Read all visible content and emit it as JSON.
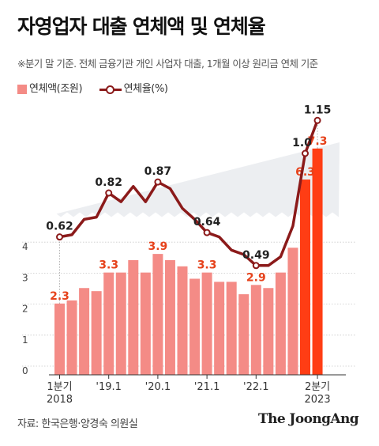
{
  "title": "자영업자 대출 연체액 및 연체율",
  "subtitle": "※분기 말 기준. 전체 금융기관 개인 사업자 대출, 1개월 이상 원리금 연체 기준",
  "legend": {
    "bar_label": "연체액(조원)",
    "line_label": "연체율(%)"
  },
  "source": "자료: 한국은행·양경숙 의원실",
  "brand": "The JoongAng",
  "colors": {
    "bar": "#f48b86",
    "bar_highlight": "#ff3d14",
    "line": "#8b1a1a",
    "highlight_text": "#e6421b",
    "label_text": "#a82a1a",
    "band": "#eceef1"
  },
  "chart_data": {
    "type": "bar",
    "categories": [
      "2018Q1",
      "2018Q2",
      "2018Q3",
      "2018Q4",
      "2019Q1",
      "2019Q2",
      "2019Q3",
      "2019Q4",
      "2020Q1",
      "2020Q2",
      "2020Q3",
      "2020Q4",
      "2021Q1",
      "2021Q2",
      "2021Q3",
      "2021Q4",
      "2022Q1",
      "2022Q2",
      "2022Q3",
      "2022Q4",
      "2023Q1",
      "2023Q2"
    ],
    "series": [
      {
        "name": "연체액(조원)",
        "type": "bar",
        "values": [
          2.3,
          2.4,
          2.8,
          2.7,
          3.3,
          3.3,
          3.7,
          3.3,
          3.9,
          3.7,
          3.5,
          3.1,
          3.3,
          3.0,
          3.0,
          2.6,
          2.9,
          2.8,
          3.3,
          4.1,
          6.3,
          7.3
        ]
      },
      {
        "name": "연체율(%)",
        "type": "line",
        "values": [
          0.62,
          0.63,
          0.7,
          0.71,
          0.82,
          0.78,
          0.85,
          0.78,
          0.87,
          0.84,
          0.75,
          0.7,
          0.64,
          0.62,
          0.56,
          0.54,
          0.49,
          0.49,
          0.53,
          0.67,
          1.0,
          1.15
        ]
      }
    ],
    "bar_labels": [
      {
        "index": 0,
        "text": "2.3"
      },
      {
        "index": 4,
        "text": "3.3"
      },
      {
        "index": 8,
        "text": "3.9"
      },
      {
        "index": 12,
        "text": "3.3"
      },
      {
        "index": 16,
        "text": "2.9"
      },
      {
        "index": 20,
        "text": "6.3"
      },
      {
        "index": 21,
        "text": "7.3"
      }
    ],
    "line_labels": [
      {
        "index": 0,
        "text": "0.62"
      },
      {
        "index": 4,
        "text": "0.82"
      },
      {
        "index": 8,
        "text": "0.87"
      },
      {
        "index": 12,
        "text": "0.64"
      },
      {
        "index": 16,
        "text": "0.49"
      },
      {
        "index": 20,
        "text": "1.0"
      },
      {
        "index": 21,
        "text": "1.15"
      }
    ],
    "x_ticks": [
      {
        "index": 0,
        "lines": [
          "1분기",
          "2018"
        ]
      },
      {
        "index": 4,
        "lines": [
          "'19.1"
        ]
      },
      {
        "index": 8,
        "lines": [
          "'20.1"
        ]
      },
      {
        "index": 12,
        "lines": [
          "'21.1"
        ]
      },
      {
        "index": 16,
        "lines": [
          "'22.1"
        ]
      },
      {
        "index": 21,
        "lines": [
          "2분기",
          "2023"
        ]
      }
    ],
    "y_ticks": [
      0,
      1,
      2,
      3,
      4
    ],
    "ylim": [
      0,
      4.5
    ],
    "axis_break": true,
    "grid": true
  }
}
